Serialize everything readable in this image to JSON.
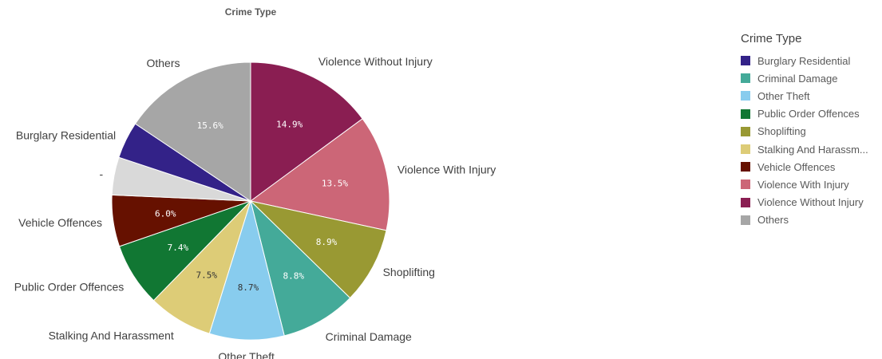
{
  "chart_data": {
    "type": "pie",
    "title": "Crime Type",
    "legend_title": "Crime Type",
    "legend_position": "right",
    "slices": [
      {
        "label": "Violence Without Injury",
        "value": 14.9,
        "value_label": "14.9%",
        "color": "#8a1e52"
      },
      {
        "label": "Violence With Injury",
        "value": 13.5,
        "value_label": "13.5%",
        "color": "#cc6677"
      },
      {
        "label": "Shoplifting",
        "value": 8.9,
        "value_label": "8.9%",
        "color": "#999933"
      },
      {
        "label": "Criminal Damage",
        "value": 8.8,
        "value_label": "8.8%",
        "color": "#44aa99"
      },
      {
        "label": "Other Theft",
        "value": 8.7,
        "value_label": "8.7%",
        "color": "#88ccee"
      },
      {
        "label": "Stalking And Harassment",
        "value": 7.5,
        "value_label": "7.5%",
        "color": "#ddcc77"
      },
      {
        "label": "Public Order Offences",
        "value": 7.4,
        "value_label": "7.4%",
        "color": "#117733"
      },
      {
        "label": "Vehicle Offences",
        "value": 6.0,
        "value_label": "6.0%",
        "color": "#661100"
      },
      {
        "label": "-",
        "value": 4.4,
        "value_label": "",
        "color": "#d9d9d9"
      },
      {
        "label": "Burglary Residential",
        "value": 4.3,
        "value_label": "",
        "color": "#332288"
      },
      {
        "label": "Others",
        "value": 15.6,
        "value_label": "15.6%",
        "color": "#a6a6a6"
      }
    ]
  },
  "legend": {
    "items": [
      {
        "label": "Burglary Residential",
        "color": "#332288"
      },
      {
        "label": "Criminal Damage",
        "color": "#44aa99"
      },
      {
        "label": "Other Theft",
        "color": "#88ccee"
      },
      {
        "label": "Public Order Offences",
        "color": "#117733"
      },
      {
        "label": "Shoplifting",
        "color": "#999933"
      },
      {
        "label": "Stalking And Harassm...",
        "color": "#ddcc77"
      },
      {
        "label": "Vehicle Offences",
        "color": "#661100"
      },
      {
        "label": "Violence With Injury",
        "color": "#cc6677"
      },
      {
        "label": "Violence Without Injury",
        "color": "#8a1e52"
      },
      {
        "label": "Others",
        "color": "#a6a6a6"
      }
    ]
  }
}
